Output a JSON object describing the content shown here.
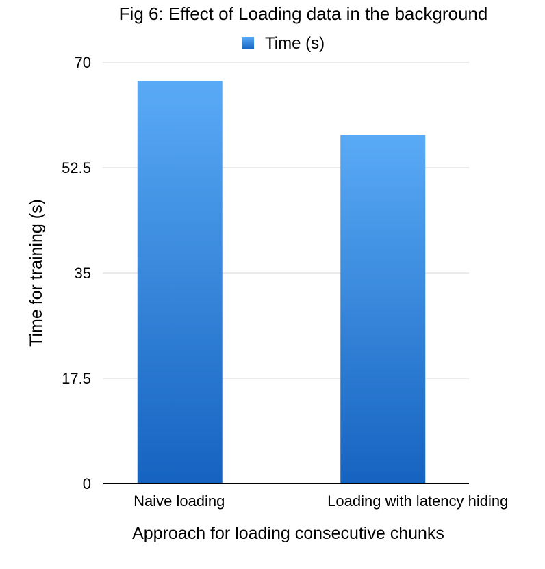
{
  "chart_data": {
    "type": "bar",
    "title": "Fig 6: Effect of Loading data in the background",
    "xlabel": "Approach for loading consecutive chunks",
    "ylabel": "Time for training (s)",
    "categories": [
      "Naive loading",
      "Loading with latency hiding"
    ],
    "series": [
      {
        "name": "Time (s)",
        "values": [
          66.9,
          57.9
        ]
      }
    ],
    "ylim": [
      0,
      70
    ],
    "yticks": [
      "0",
      "17.5",
      "35",
      "52.5",
      "70"
    ],
    "grid": true,
    "legend_position": "top-center",
    "colors": {
      "bar_top": "#59aaf6",
      "bar_bottom": "#1563c0",
      "legend_swatch": "#2a86e0"
    }
  }
}
